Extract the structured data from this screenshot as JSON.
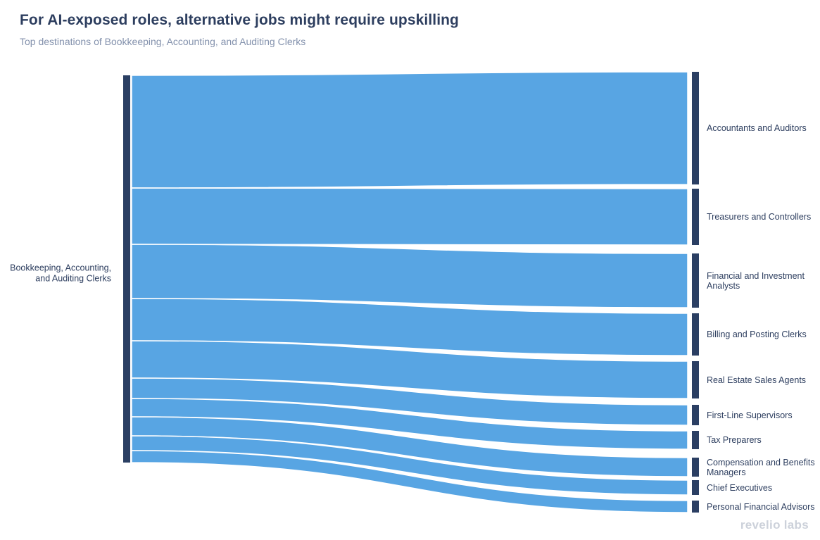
{
  "page": {
    "title": "For AI-exposed roles, alternative jobs might require upskilling",
    "subtitle": "Top destinations of Bookkeeping, Accounting, and Auditing Clerks",
    "brand": "revelio labs"
  },
  "chart_data": {
    "type": "sankey",
    "title": "For AI-exposed roles, alternative jobs might require upskilling",
    "subtitle": "Top destinations of Bookkeeping, Accounting, and Auditing Clerks",
    "source": {
      "label": "Bookkeeping, Accounting,\nand Auditing Clerks"
    },
    "destinations": [
      {
        "label": "Accountants and Auditors",
        "value": 160,
        "share_pct_est": 29.1
      },
      {
        "label": "Treasurers and Controllers",
        "value": 80,
        "share_pct_est": 14.5
      },
      {
        "label": "Financial and Investment Analysts",
        "value": 77,
        "share_pct_est": 14.0
      },
      {
        "label": "Billing and Posting Clerks",
        "value": 60,
        "share_pct_est": 10.9
      },
      {
        "label": "Real Estate Sales Agents",
        "value": 53,
        "share_pct_est": 9.6
      },
      {
        "label": "First-Line Supervisors",
        "value": 29,
        "share_pct_est": 5.3
      },
      {
        "label": "Tax Preparers",
        "value": 26,
        "share_pct_est": 4.7
      },
      {
        "label": "Compensation and Benefits Managers",
        "value": 27,
        "share_pct_est": 4.9
      },
      {
        "label": "Chief Executives",
        "value": 21,
        "share_pct_est": 3.8
      },
      {
        "label": "Personal Financial Advisors",
        "value": 17,
        "share_pct_est": 3.1
      }
    ],
    "value_units": "relative flow thickness (estimated from pixel heights, no numeric labels shown in chart)",
    "legend": "none",
    "grid": "off",
    "colors": {
      "node": "#2b3f63",
      "flow": "#58a5e3",
      "title_text": "#2d3e5f",
      "subtitle_text": "#8492ad",
      "label_text": "#2d3e5f",
      "brand_text": "#ccd1da",
      "background": "#ffffff"
    }
  }
}
